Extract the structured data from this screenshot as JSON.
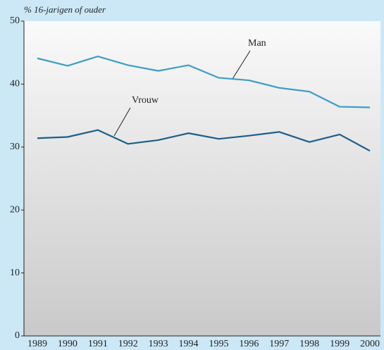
{
  "chart_data": {
    "type": "line",
    "y_axis_label": "% 16-jarigen of ouder",
    "categories": [
      "1989",
      "1990",
      "1991",
      "1992",
      "1993",
      "1994",
      "1995",
      "1996",
      "1997",
      "1998",
      "1999",
      "2000"
    ],
    "series": [
      {
        "name": "Man",
        "color": "#3d9dc6",
        "values": [
          44.1,
          42.9,
          44.4,
          43.0,
          42.1,
          43.0,
          41.0,
          40.6,
          39.4,
          38.8,
          36.4,
          36.3
        ]
      },
      {
        "name": "Vrouw",
        "color": "#1b5f88",
        "values": [
          31.4,
          31.6,
          32.7,
          30.5,
          31.1,
          32.2,
          31.3,
          31.8,
          32.4,
          30.8,
          32.0,
          29.4
        ]
      }
    ],
    "ylim": [
      0,
      50
    ],
    "yticks": [
      0,
      10,
      20,
      30,
      40,
      50
    ],
    "grid": false
  }
}
